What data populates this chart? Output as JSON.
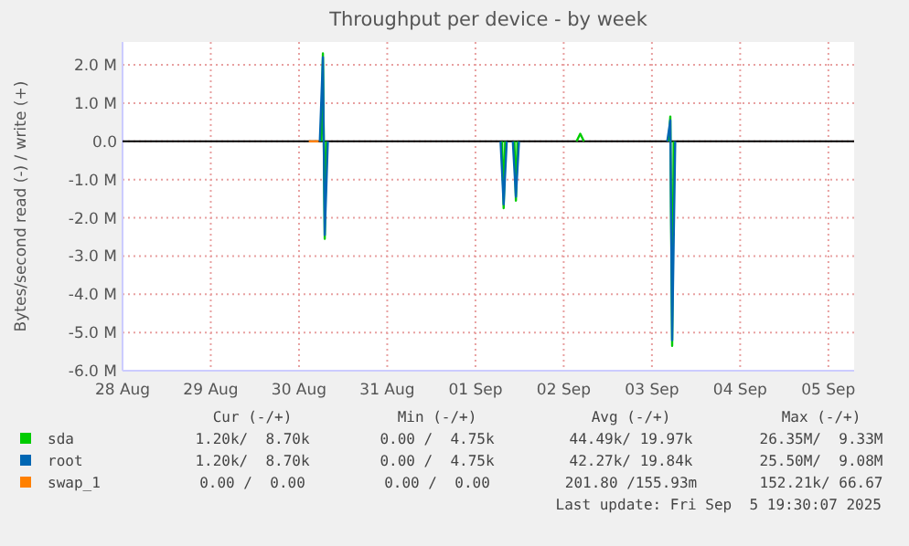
{
  "chart_data": {
    "type": "line",
    "title": "Throughput per device - by week",
    "ylabel": "Bytes/second read (-) / write (+)",
    "series": [
      {
        "name": "sda",
        "color": "#00cc00",
        "x": [
          "2025-08-30T06:05",
          "2025-08-30T06:30",
          "2025-08-30T07:00",
          "2025-08-30T07:25",
          "2025-08-30T12:00",
          "2025-09-01T07:15",
          "2025-09-01T07:40",
          "2025-09-01T08:05",
          "2025-09-01T09:30",
          "2025-09-01T10:35",
          "2025-09-01T11:00",
          "2025-09-01T11:25",
          "2025-09-01T20:00",
          "2025-09-02T03:30",
          "2025-09-02T04:30",
          "2025-09-02T05:30",
          "2025-09-02T12:00",
          "2025-09-03T04:35",
          "2025-09-03T05:00",
          "2025-09-03T05:30",
          "2025-09-03T05:55"
        ],
        "values": [
          0,
          2.3,
          -2.55,
          0,
          null,
          0,
          -1.75,
          0,
          null,
          0,
          -1.55,
          0,
          null,
          0,
          0.2,
          0,
          null,
          0,
          0.65,
          -5.35,
          0
        ]
      },
      {
        "name": "root",
        "color": "#0066b3",
        "x": [
          "2025-08-30T05:40",
          "2025-08-30T06:30",
          "2025-08-30T07:00",
          "2025-08-30T07:50",
          "2025-08-30T12:00",
          "2025-09-01T06:50",
          "2025-09-01T07:40",
          "2025-09-01T08:30",
          "2025-09-01T09:30",
          "2025-09-01T10:10",
          "2025-09-01T11:00",
          "2025-09-01T11:50",
          "2025-09-02T00:00",
          "2025-09-03T04:10",
          "2025-09-03T05:00",
          "2025-09-03T05:30",
          "2025-09-03T06:20"
        ],
        "values": [
          0,
          2.2,
          -2.45,
          0,
          null,
          0,
          -1.65,
          0,
          null,
          0,
          -1.45,
          0,
          null,
          0,
          0.55,
          -5.2,
          0
        ]
      },
      {
        "name": "swap_1",
        "color": "#ff8000",
        "x": [
          "2025-08-30T02:40",
          "2025-08-30T05:20"
        ],
        "values": [
          0,
          0
        ]
      }
    ],
    "xlim": [
      "2025-08-28T00:00",
      "2025-09-05T07:00"
    ],
    "xticks": [
      {
        "value": "2025-08-28",
        "label": "28 Aug"
      },
      {
        "value": "2025-08-29",
        "label": "29 Aug"
      },
      {
        "value": "2025-08-30",
        "label": "30 Aug"
      },
      {
        "value": "2025-08-31",
        "label": "31 Aug"
      },
      {
        "value": "2025-09-01",
        "label": "01 Sep"
      },
      {
        "value": "2025-09-02",
        "label": "02 Sep"
      },
      {
        "value": "2025-09-03",
        "label": "03 Sep"
      },
      {
        "value": "2025-09-04",
        "label": "04 Sep"
      },
      {
        "value": "2025-09-05",
        "label": "05 Sep"
      }
    ],
    "ylim": [
      -6,
      2.6
    ],
    "yticks": [
      {
        "value": -6,
        "label": "-6.0 M"
      },
      {
        "value": -5,
        "label": "-5.0 M"
      },
      {
        "value": -4,
        "label": "-4.0 M"
      },
      {
        "value": -3,
        "label": "-3.0 M"
      },
      {
        "value": -2,
        "label": "-2.0 M"
      },
      {
        "value": -1,
        "label": "-1.0 M"
      },
      {
        "value": 0,
        "label": "0.0"
      },
      {
        "value": 1,
        "label": "1.0 M"
      },
      {
        "value": 2,
        "label": "2.0 M"
      }
    ],
    "ref_lines": [
      {
        "axis": "y",
        "value": 0,
        "color": "#000000"
      }
    ],
    "grid": true,
    "legend": "bottom",
    "annotations": [
      "Cur (-/+)",
      "Min (-/+)",
      "Avg (-/+)",
      "Max (-/+)",
      "1.20k/  8.70k",
      "0.00 /  4.75k",
      "44.49k/ 19.97k",
      "26.35M/  9.33M",
      "1.20k/  8.70k",
      "0.00 /  4.75k",
      "42.27k/ 19.84k",
      "25.50M/  9.08M",
      "0.00 /  0.00",
      "0.00 /  0.00",
      "201.80 /155.93m",
      "152.21k/ 66.67",
      "Last update: Fri Sep  5 19:30:07 2025"
    ]
  }
}
